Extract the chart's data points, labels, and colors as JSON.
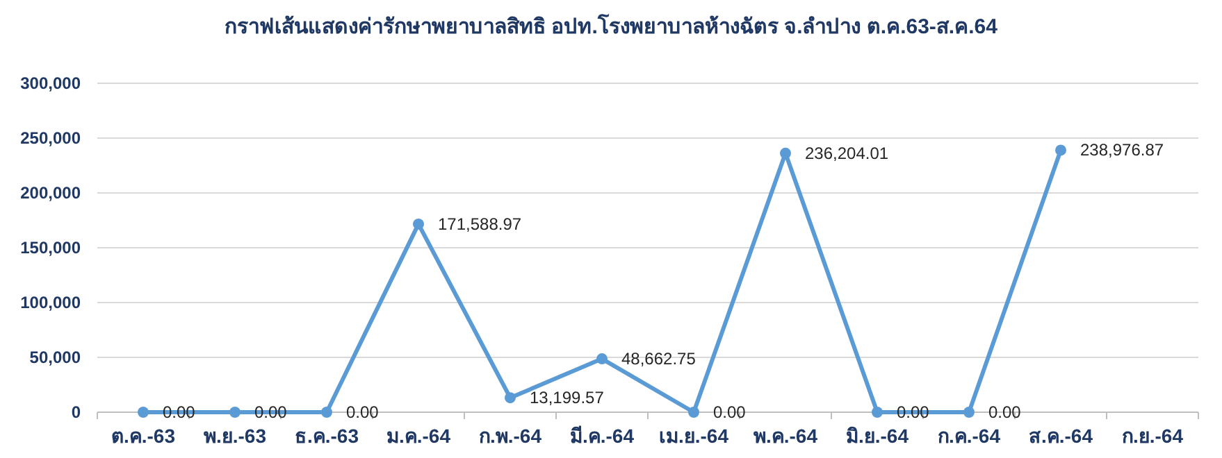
{
  "chart_data": {
    "type": "line",
    "title": "กราฟเส้นแสดงค่ารักษาพยาบาลสิทธิ อปท.โรงพยาบาลห้างฉัตร จ.ลำปาง ต.ค.63-ส.ค.64",
    "categories": [
      "ต.ค.-63",
      "พ.ย.-63",
      "ธ.ค.-63",
      "ม.ค.-64",
      "ก.พ.-64",
      "มี.ค.-64",
      "เม.ย.-64",
      "พ.ค.-64",
      "มิ.ย.-64",
      "ก.ค.-64",
      "ส.ค.-64",
      "ก.ย.-64"
    ],
    "series": [
      {
        "color": "#5b9bd5",
        "values": [
          0,
          0,
          0,
          171588.97,
          13199.57,
          48662.75,
          0,
          236204.01,
          0,
          0,
          238976.87,
          null
        ]
      }
    ],
    "value_labels": [
      "0.00",
      "0.00",
      "0.00",
      "171,588.97",
      "13,199.57",
      "48,662.75",
      "0.00",
      "236,204.01",
      "0.00",
      "0.00",
      "238,976.87",
      null
    ],
    "ylim": [
      0,
      300000
    ],
    "yticks": [
      {
        "value": 0,
        "label": "0"
      },
      {
        "value": 50000,
        "label": "50,000"
      },
      {
        "value": 100000,
        "label": "100,000"
      },
      {
        "value": 150000,
        "label": "150,000"
      },
      {
        "value": 200000,
        "label": "200,000"
      },
      {
        "value": 250000,
        "label": "250,000"
      },
      {
        "value": 300000,
        "label": "300,000"
      }
    ],
    "grid": "y",
    "marker": "circle",
    "line_style": "solid"
  }
}
